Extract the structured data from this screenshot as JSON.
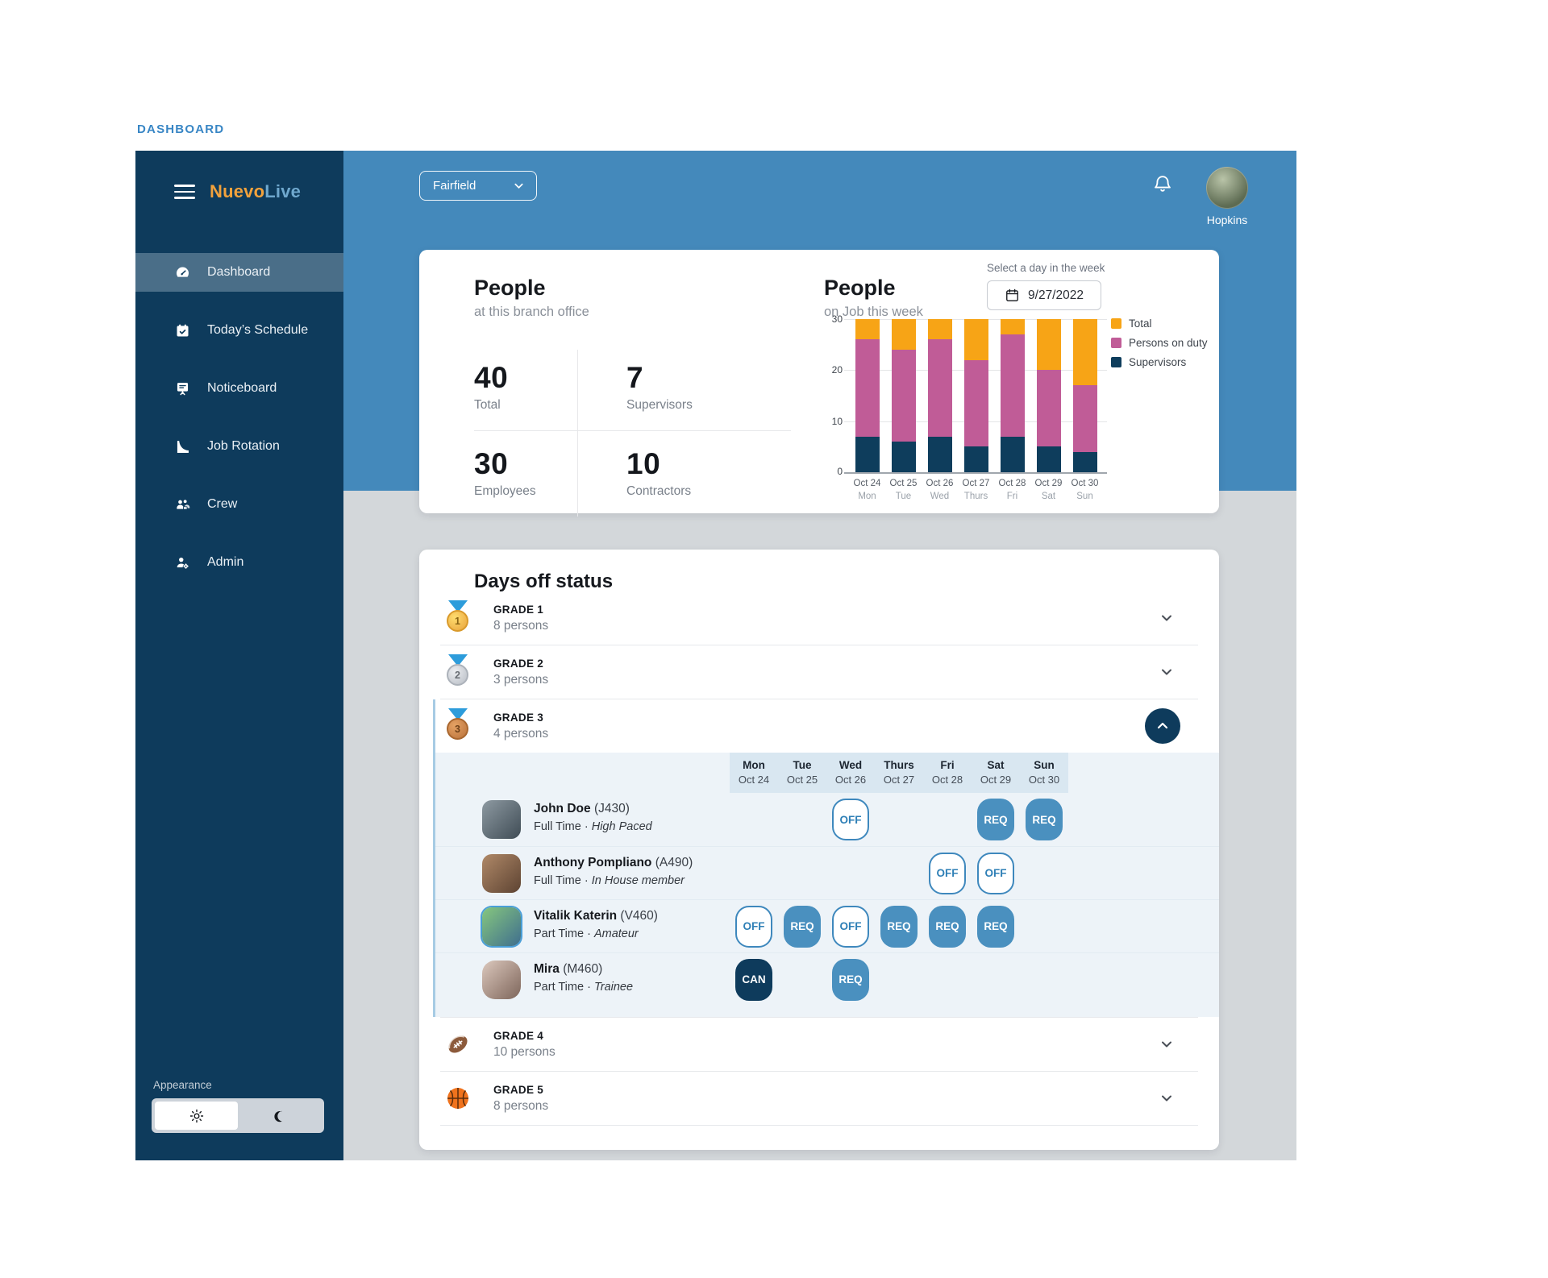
{
  "page": {
    "label": "DASHBOARD"
  },
  "sidebar": {
    "logo": {
      "primary": "Nuevo",
      "secondary": "Live"
    },
    "nav": [
      {
        "label": "Dashboard",
        "active": true
      },
      {
        "label": "Today’s Schedule",
        "active": false
      },
      {
        "label": "Noticeboard",
        "active": false
      },
      {
        "label": "Job Rotation",
        "active": false
      },
      {
        "label": "Crew",
        "active": false
      },
      {
        "label": "Admin",
        "active": false
      }
    ],
    "appearance_label": "Appearance"
  },
  "header": {
    "branch": "Fairfield",
    "username": "Hopkins"
  },
  "people_card": {
    "title": "People",
    "subtitle": "at this branch office",
    "stats": [
      {
        "value": "40",
        "label": "Total"
      },
      {
        "value": "7",
        "label": "Supervisors"
      },
      {
        "value": "30",
        "label": "Employees"
      },
      {
        "value": "10",
        "label": "Contractors"
      }
    ]
  },
  "week_card": {
    "title": "People",
    "subtitle": "on Job this week",
    "picker_label": "Select a day in the week",
    "date_value": "9/27/2022"
  },
  "chart_data": {
    "type": "bar",
    "stacked": true,
    "categories": [
      {
        "date": "Oct 24",
        "day": "Mon"
      },
      {
        "date": "Oct 25",
        "day": "Tue"
      },
      {
        "date": "Oct 26",
        "day": "Wed"
      },
      {
        "date": "Oct 27",
        "day": "Thurs"
      },
      {
        "date": "Oct 28",
        "day": "Fri"
      },
      {
        "date": "Oct 29",
        "day": "Sat"
      },
      {
        "date": "Oct 30",
        "day": "Sun"
      }
    ],
    "series": [
      {
        "name": "Supervisors",
        "color": "#0E3D5C",
        "values": [
          7,
          6,
          7,
          5,
          7,
          5,
          4
        ]
      },
      {
        "name": "Persons on duty",
        "color": "#C05C97",
        "values": [
          19,
          18,
          19,
          17,
          20,
          15,
          13
        ]
      },
      {
        "name": "Total",
        "color": "#F7A416",
        "values": [
          4,
          6,
          4,
          8,
          3,
          10,
          13
        ]
      }
    ],
    "stack_tops": {
      "supervisors": [
        7,
        6,
        7,
        5,
        7,
        5,
        4
      ],
      "persons_on_duty": [
        26,
        24,
        26,
        22,
        27,
        20,
        17
      ],
      "total": [
        30,
        30,
        30,
        30,
        30,
        30,
        30
      ]
    },
    "ylim": [
      0,
      30
    ],
    "yticks": [
      "30",
      "20",
      "10",
      "0"
    ],
    "grid": true,
    "legend_position": "right",
    "legend": [
      {
        "label": "Total",
        "color": "#F7A416"
      },
      {
        "label": "Persons on duty",
        "color": "#C05C97"
      },
      {
        "label": "Supervisors",
        "color": "#0E3D5C"
      }
    ]
  },
  "days_off": {
    "title": "Days off status",
    "dot": "·",
    "week": [
      {
        "day": "Mon",
        "date": "Oct 24"
      },
      {
        "day": "Tue",
        "date": "Oct 25"
      },
      {
        "day": "Wed",
        "date": "Oct 26"
      },
      {
        "day": "Thurs",
        "date": "Oct 27"
      },
      {
        "day": "Fri",
        "date": "Oct 28"
      },
      {
        "day": "Sat",
        "date": "Oct 29"
      },
      {
        "day": "Sun",
        "date": "Oct 30"
      }
    ],
    "grades": [
      {
        "name": "GRADE 1",
        "persons": "8 persons",
        "icon": "gold-medal",
        "icon_number": "1",
        "expanded": false
      },
      {
        "name": "GRADE 2",
        "persons": "3 persons",
        "icon": "silver-medal",
        "icon_number": "2",
        "expanded": false
      },
      {
        "name": "GRADE 3",
        "persons": "4 persons",
        "icon": "bronze-medal",
        "icon_number": "3",
        "expanded": true
      },
      {
        "name": "GRADE 4",
        "persons": "10 persons",
        "icon": "football",
        "icon_number": "",
        "expanded": false
      },
      {
        "name": "GRADE 5",
        "persons": "8 persons",
        "icon": "basketball",
        "icon_number": "",
        "expanded": false
      }
    ],
    "grade3_people": [
      {
        "name": "John Doe",
        "code": "(J430)",
        "employment": "Full Time",
        "role": "High Paced",
        "badges": [
          null,
          null,
          {
            "label": "OFF",
            "style": "outline"
          },
          null,
          null,
          {
            "label": "REQ",
            "style": "solid"
          },
          {
            "label": "REQ",
            "style": "solid"
          }
        ]
      },
      {
        "name": "Anthony Pompliano",
        "code": "(A490)",
        "employment": "Full Time",
        "role": "In House member",
        "badges": [
          null,
          null,
          null,
          null,
          {
            "label": "OFF",
            "style": "outline"
          },
          {
            "label": "OFF",
            "style": "outline"
          },
          null
        ]
      },
      {
        "name": "Vitalik Katerin",
        "code": "(V460)",
        "employment": "Part Time",
        "role": "Amateur",
        "badges": [
          {
            "label": "OFF",
            "style": "outline"
          },
          {
            "label": "REQ",
            "style": "solid"
          },
          {
            "label": "OFF",
            "style": "outline"
          },
          {
            "label": "REQ",
            "style": "solid"
          },
          {
            "label": "REQ",
            "style": "solid"
          },
          {
            "label": "REQ",
            "style": "solid"
          },
          null
        ]
      },
      {
        "name": "Mira",
        "code": "(M460)",
        "employment": "Part Time",
        "role": "Trainee",
        "badges": [
          {
            "label": "CAN",
            "style": "dark"
          },
          null,
          {
            "label": "REQ",
            "style": "solid"
          },
          null,
          null,
          null,
          null
        ]
      }
    ]
  },
  "colors": {
    "sidebar": "#0E3B5C",
    "header_band": "#4489BB",
    "main_background": "#D3D7DA",
    "accent_orange": "#F7A416",
    "accent_magenta": "#C05C97",
    "badge_blue": "#4A90BF",
    "label_blue": "#3886C5"
  }
}
